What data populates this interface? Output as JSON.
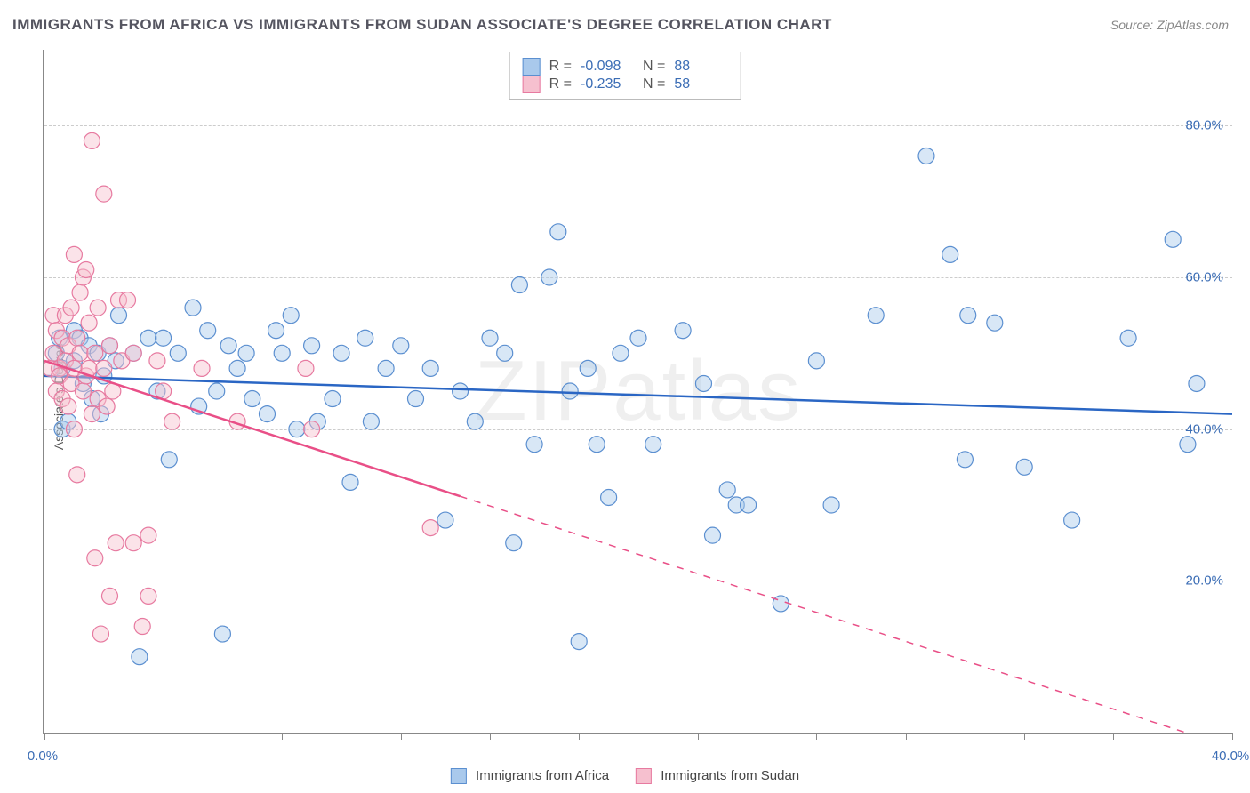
{
  "title": "IMMIGRANTS FROM AFRICA VS IMMIGRANTS FROM SUDAN ASSOCIATE'S DEGREE CORRELATION CHART",
  "source": "Source: ZipAtlas.com",
  "watermark": "ZIPatlas",
  "chart": {
    "type": "scatter",
    "ylabel": "Associate's Degree",
    "xlim": [
      0,
      40
    ],
    "ylim": [
      0,
      90
    ],
    "yticks": [
      20,
      40,
      60,
      80
    ],
    "ytick_labels": [
      "20.0%",
      "40.0%",
      "60.0%",
      "80.0%"
    ],
    "xticks": [
      0,
      4,
      8,
      12,
      15,
      18,
      22,
      26,
      29,
      33,
      36,
      40
    ],
    "xtick_labels_shown": {
      "0": "0.0%",
      "40": "40.0%"
    },
    "background_color": "#ffffff",
    "grid_color": "#cccccc",
    "axis_color": "#888888",
    "tick_label_color": "#3b6db5",
    "marker_radius": 9,
    "marker_opacity": 0.45,
    "line_width": 2.5,
    "series": [
      {
        "name": "Immigrants from Africa",
        "color_fill": "#a9c9ec",
        "color_stroke": "#5b8fd0",
        "line_color": "#2a66c4",
        "R": "-0.098",
        "N": "88",
        "trend": {
          "x1": 0,
          "y1": 47,
          "x2": 40,
          "y2": 42,
          "dash_after_x": null
        },
        "points": [
          [
            0.4,
            50
          ],
          [
            0.5,
            52
          ],
          [
            0.6,
            48
          ],
          [
            0.6,
            40
          ],
          [
            0.8,
            41
          ],
          [
            1.0,
            53
          ],
          [
            1.0,
            49
          ],
          [
            1.2,
            52
          ],
          [
            1.3,
            46
          ],
          [
            1.5,
            51
          ],
          [
            1.6,
            44
          ],
          [
            1.8,
            50
          ],
          [
            1.9,
            42
          ],
          [
            2.0,
            47
          ],
          [
            2.2,
            51
          ],
          [
            2.4,
            49
          ],
          [
            2.5,
            55
          ],
          [
            3.0,
            50
          ],
          [
            3.2,
            10
          ],
          [
            3.5,
            52
          ],
          [
            3.8,
            45
          ],
          [
            4.0,
            52
          ],
          [
            4.2,
            36
          ],
          [
            4.5,
            50
          ],
          [
            5.0,
            56
          ],
          [
            5.2,
            43
          ],
          [
            5.5,
            53
          ],
          [
            5.8,
            45
          ],
          [
            6.0,
            13
          ],
          [
            6.2,
            51
          ],
          [
            6.5,
            48
          ],
          [
            6.8,
            50
          ],
          [
            7.0,
            44
          ],
          [
            7.5,
            42
          ],
          [
            7.8,
            53
          ],
          [
            8.0,
            50
          ],
          [
            8.3,
            55
          ],
          [
            8.5,
            40
          ],
          [
            9.0,
            51
          ],
          [
            9.2,
            41
          ],
          [
            9.7,
            44
          ],
          [
            10.0,
            50
          ],
          [
            10.3,
            33
          ],
          [
            10.8,
            52
          ],
          [
            11.0,
            41
          ],
          [
            11.5,
            48
          ],
          [
            12.0,
            51
          ],
          [
            12.5,
            44
          ],
          [
            13.0,
            48
          ],
          [
            13.5,
            28
          ],
          [
            14.0,
            45
          ],
          [
            14.5,
            41
          ],
          [
            15.0,
            52
          ],
          [
            15.5,
            50
          ],
          [
            15.8,
            25
          ],
          [
            16.0,
            59
          ],
          [
            16.5,
            38
          ],
          [
            17.0,
            60
          ],
          [
            17.3,
            66
          ],
          [
            17.7,
            45
          ],
          [
            18.0,
            12
          ],
          [
            18.3,
            48
          ],
          [
            18.6,
            38
          ],
          [
            19.0,
            31
          ],
          [
            19.4,
            50
          ],
          [
            20.0,
            52
          ],
          [
            20.5,
            38
          ],
          [
            21.5,
            53
          ],
          [
            22.2,
            46
          ],
          [
            22.5,
            26
          ],
          [
            23.0,
            32
          ],
          [
            23.3,
            30
          ],
          [
            23.7,
            30
          ],
          [
            24.8,
            17
          ],
          [
            26.0,
            49
          ],
          [
            26.5,
            30
          ],
          [
            28.0,
            55
          ],
          [
            29.7,
            76
          ],
          [
            30.5,
            63
          ],
          [
            31.0,
            36
          ],
          [
            31.1,
            55
          ],
          [
            32.0,
            54
          ],
          [
            33.0,
            35
          ],
          [
            34.6,
            28
          ],
          [
            36.5,
            52
          ],
          [
            38.0,
            65
          ],
          [
            38.5,
            38
          ],
          [
            38.8,
            46
          ]
        ]
      },
      {
        "name": "Immigrants from Sudan",
        "color_fill": "#f6c0cf",
        "color_stroke": "#e77aa0",
        "line_color": "#e94f87",
        "R": "-0.235",
        "N": "58",
        "trend": {
          "x1": 0,
          "y1": 49,
          "x2": 40,
          "y2": -2,
          "dash_after_x": 14
        },
        "points": [
          [
            0.2,
            48
          ],
          [
            0.3,
            55
          ],
          [
            0.3,
            50
          ],
          [
            0.4,
            53
          ],
          [
            0.4,
            45
          ],
          [
            0.5,
            48
          ],
          [
            0.5,
            47
          ],
          [
            0.6,
            52
          ],
          [
            0.6,
            44
          ],
          [
            0.7,
            55
          ],
          [
            0.7,
            49
          ],
          [
            0.8,
            51
          ],
          [
            0.8,
            43
          ],
          [
            0.9,
            56
          ],
          [
            0.9,
            46
          ],
          [
            1.0,
            63
          ],
          [
            1.0,
            48
          ],
          [
            1.0,
            40
          ],
          [
            1.1,
            52
          ],
          [
            1.1,
            34
          ],
          [
            1.2,
            58
          ],
          [
            1.2,
            50
          ],
          [
            1.3,
            45
          ],
          [
            1.3,
            60
          ],
          [
            1.4,
            47
          ],
          [
            1.4,
            61
          ],
          [
            1.5,
            54
          ],
          [
            1.5,
            48
          ],
          [
            1.6,
            78
          ],
          [
            1.6,
            42
          ],
          [
            1.7,
            50
          ],
          [
            1.7,
            23
          ],
          [
            1.8,
            56
          ],
          [
            1.8,
            44
          ],
          [
            1.9,
            13
          ],
          [
            2.0,
            48
          ],
          [
            2.0,
            71
          ],
          [
            2.1,
            43
          ],
          [
            2.2,
            18
          ],
          [
            2.2,
            51
          ],
          [
            2.3,
            45
          ],
          [
            2.4,
            25
          ],
          [
            2.5,
            57
          ],
          [
            2.6,
            49
          ],
          [
            2.8,
            57
          ],
          [
            3.0,
            25
          ],
          [
            3.0,
            50
          ],
          [
            3.3,
            14
          ],
          [
            3.5,
            26
          ],
          [
            3.5,
            18
          ],
          [
            3.8,
            49
          ],
          [
            4.0,
            45
          ],
          [
            4.3,
            41
          ],
          [
            5.3,
            48
          ],
          [
            6.5,
            41
          ],
          [
            8.8,
            48
          ],
          [
            9.0,
            40
          ],
          [
            13.0,
            27
          ]
        ]
      }
    ],
    "x_legend": [
      {
        "label": "Immigrants from Africa",
        "fill": "#a9c9ec",
        "stroke": "#5b8fd0"
      },
      {
        "label": "Immigrants from Sudan",
        "fill": "#f6c0cf",
        "stroke": "#e77aa0"
      }
    ]
  }
}
